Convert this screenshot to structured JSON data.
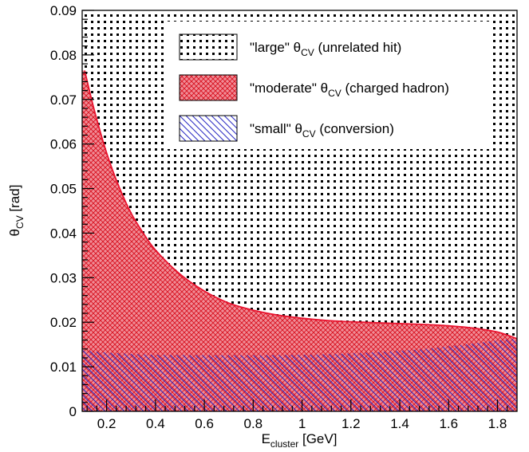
{
  "chart_data": {
    "type": "area",
    "title": "",
    "xlabel": {
      "main": "E",
      "sub": "cluster",
      "suffix": " [GeV]"
    },
    "ylabel": {
      "main": "θ",
      "sub": "CV",
      "suffix": " [rad]"
    },
    "xlim": [
      0.1,
      1.88
    ],
    "ylim": [
      0,
      0.09
    ],
    "xticks": [
      "0.2",
      "0.4",
      "0.6",
      "0.8",
      "1",
      "1.2",
      "1.4",
      "1.6",
      "1.8"
    ],
    "yticks": [
      "0",
      "0.01",
      "0.02",
      "0.03",
      "0.04",
      "0.05",
      "0.06",
      "0.07",
      "0.08",
      "0.09"
    ],
    "grid": false,
    "legend_position": "top-right",
    "legend": [
      {
        "pre": "\"large\" θ",
        "sub": "CV",
        "post": " (unrelated hit)"
      },
      {
        "pre": "\"moderate\" θ",
        "sub": "CV",
        "post": " (charged hadron)"
      },
      {
        "pre": "\"small\" θ",
        "sub": "CV",
        "post": " (conversion)"
      }
    ],
    "series": [
      {
        "pattern": "dots",
        "color": "#000000",
        "x": [
          0.1,
          1.88
        ],
        "y_low_ref": "upper boundary of moderate region",
        "y_high": [
          0.09,
          0.09
        ]
      },
      {
        "pattern": "crosshatch",
        "color": "#e8112d",
        "x": [
          0.11,
          0.15,
          0.2,
          0.25,
          0.3,
          0.35,
          0.4,
          0.5,
          0.6,
          0.7,
          0.8,
          0.9,
          1.0,
          1.1,
          1.2,
          1.3,
          1.4,
          1.5,
          1.6,
          1.7,
          1.8,
          1.88
        ],
        "y": [
          0.0765,
          0.0675,
          0.058,
          0.0505,
          0.0445,
          0.04,
          0.0362,
          0.0308,
          0.027,
          0.0243,
          0.0227,
          0.0216,
          0.0209,
          0.0204,
          0.0201,
          0.0199,
          0.0197,
          0.0195,
          0.0192,
          0.0187,
          0.0178,
          0.0163
        ]
      },
      {
        "pattern": "diagonal",
        "color": "#2b2bcc",
        "x": [
          0.1,
          0.2,
          0.3,
          0.4,
          0.6,
          0.8,
          1.0,
          1.2,
          1.4,
          1.5,
          1.6,
          1.7,
          1.8,
          1.88
        ],
        "y": [
          0.0137,
          0.0132,
          0.0129,
          0.0127,
          0.0126,
          0.0126,
          0.0127,
          0.013,
          0.0136,
          0.014,
          0.0146,
          0.0152,
          0.0159,
          0.0163
        ]
      }
    ]
  }
}
